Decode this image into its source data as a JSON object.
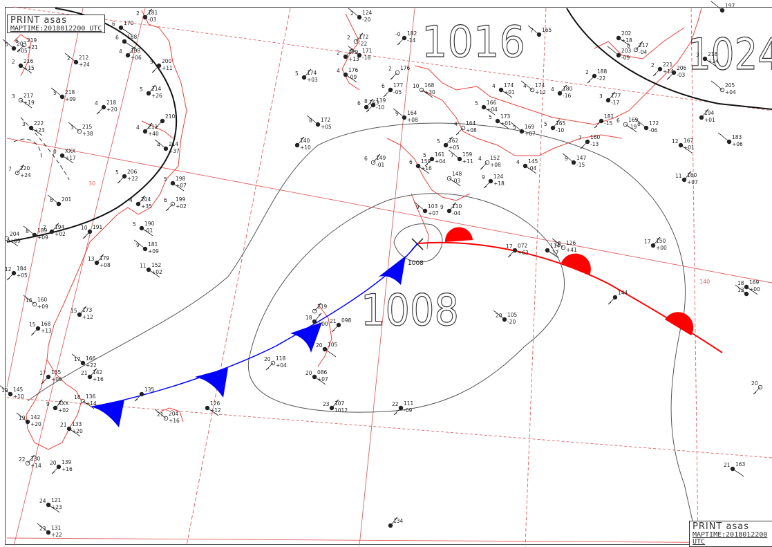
{
  "stamp": {
    "print_label": "PRINT   asas",
    "map_time": "MAPTIME:2018012200 UTC"
  },
  "isobars": [
    {
      "label": "1016"
    },
    {
      "label": "1024"
    },
    {
      "label": "1008"
    }
  ],
  "pressure_center": {
    "label": "1008"
  },
  "colors": {
    "warm_front": "#ff0000",
    "cold_front": "#0000ff",
    "coastline": "#e8403a",
    "grid": "#e06060",
    "isobar": "#555555",
    "station": "#222222"
  },
  "stations": [
    {
      "t": "5",
      "p": "207",
      "c": "+05"
    },
    {
      "t": "2",
      "p": "181",
      "c": "-03"
    },
    {
      "t": "6",
      "p": "219",
      "c": "+21"
    },
    {
      "t": "2",
      "p": "216",
      "c": "+15"
    },
    {
      "t": "2",
      "p": "212",
      "c": "+24"
    },
    {
      "t": "4",
      "p": "198",
      "c": "+06"
    },
    {
      "t": "5",
      "p": "200",
      "c": "+11"
    },
    {
      "t": "3",
      "p": "217",
      "c": "+19"
    },
    {
      "t": "5",
      "p": "218",
      "c": "+09"
    },
    {
      "t": "5",
      "p": "214",
      "c": "+26"
    },
    {
      "t": "4",
      "p": "218",
      "c": "+20"
    },
    {
      "t": "3",
      "p": "222",
      "c": "+23"
    },
    {
      "t": "3",
      "p": "215",
      "c": "+38"
    },
    {
      "t": "4",
      "p": "211",
      "c": "+40"
    },
    {
      "t": "",
      "p": "210",
      "c": ""
    },
    {
      "t": "0",
      "p": "XXX",
      "c": "+17"
    },
    {
      "t": "4",
      "p": "214",
      "c": "+37"
    },
    {
      "t": "7",
      "p": "220",
      "c": "+24"
    },
    {
      "t": "5",
      "p": "206",
      "c": "+22"
    },
    {
      "t": "5",
      "p": "198",
      "c": "+07"
    },
    {
      "t": "8",
      "p": "201",
      "c": ""
    },
    {
      "t": "4",
      "p": "204",
      "c": "+35"
    },
    {
      "t": "6",
      "p": "199",
      "c": "+02"
    },
    {
      "t": "5",
      "p": "190",
      "c": "-01"
    },
    {
      "t": "8",
      "p": "189",
      "c": "+09"
    },
    {
      "t": "7",
      "p": "194",
      "c": "+02"
    },
    {
      "t": "10",
      "p": "191",
      "c": ""
    },
    {
      "t": "",
      "p": "204",
      "c": "+09"
    },
    {
      "t": "9",
      "p": "181",
      "c": "+09"
    },
    {
      "t": "13",
      "p": "179",
      "c": "+08"
    },
    {
      "t": "12",
      "p": "184",
      "c": "+05"
    },
    {
      "t": "11",
      "p": "152",
      "c": "+02"
    },
    {
      "t": "16",
      "p": "160",
      "c": "+09"
    },
    {
      "t": "15",
      "p": "173",
      "c": "+12"
    },
    {
      "t": "15",
      "p": "168",
      "c": "+13"
    },
    {
      "t": "6",
      "p": "170",
      "c": ""
    },
    {
      "t": "2",
      "p": "124",
      "c": "-20"
    },
    {
      "t": "2",
      "p": "172",
      "c": "-22"
    },
    {
      "t": "-0",
      "p": "182",
      "c": "-14"
    },
    {
      "t": "6",
      "p": "188",
      "c": ""
    },
    {
      "t": "3",
      "p": "171",
      "c": "-18"
    },
    {
      "t": "2",
      "p": "179",
      "c": "+13"
    },
    {
      "t": "2",
      "p": "176",
      "c": ""
    },
    {
      "t": "4",
      "p": "176",
      "c": "-09"
    },
    {
      "t": "7",
      "p": "165",
      "c": ""
    },
    {
      "t": "5",
      "p": "174",
      "c": "+03"
    },
    {
      "t": "6",
      "p": "177",
      "c": "-05"
    },
    {
      "t": "10",
      "p": "168",
      "c": "+30"
    },
    {
      "t": "8",
      "p": "172",
      "c": "+05"
    },
    {
      "t": "6",
      "p": "163",
      "c": ""
    },
    {
      "t": "8",
      "p": "139",
      "c": "-10"
    },
    {
      "t": "4",
      "p": "174",
      "c": "+01"
    },
    {
      "t": "4",
      "p": "174",
      "c": "+12"
    },
    {
      "t": "4",
      "p": "180",
      "c": "-16"
    },
    {
      "t": "2",
      "p": "188",
      "c": "-22"
    },
    {
      "t": "",
      "p": "202",
      "c": "+18"
    },
    {
      "t": "",
      "p": "203",
      "c": "-09"
    },
    {
      "t": "0",
      "p": "217",
      "c": "-04"
    },
    {
      "t": "2",
      "p": "221",
      "c": "+14"
    },
    {
      "t": "5",
      "p": "166",
      "c": "+04"
    },
    {
      "t": "9",
      "p": "164",
      "c": "+08"
    },
    {
      "t": "",
      "p": "140",
      "c": "+10"
    },
    {
      "t": "4",
      "p": "164",
      "c": "+08"
    },
    {
      "t": "5",
      "p": "173",
      "c": "+01"
    },
    {
      "t": "5",
      "p": "169",
      "c": "+07"
    },
    {
      "t": "5",
      "p": "165",
      "c": "-10"
    },
    {
      "t": "",
      "p": "181",
      "c": "-15"
    },
    {
      "t": "6",
      "p": "169",
      "c": "-19"
    },
    {
      "t": "8",
      "p": "172",
      "c": "-06"
    },
    {
      "t": "3",
      "p": "177",
      "c": "-17"
    },
    {
      "t": "",
      "p": "206",
      "c": "-03"
    },
    {
      "t": "3",
      "p": "218",
      "c": "+14"
    },
    {
      "t": "",
      "p": "205",
      "c": "+04"
    },
    {
      "t": "",
      "p": "194",
      "c": "+01"
    },
    {
      "t": "7",
      "p": "160",
      "c": "-13"
    },
    {
      "t": "12",
      "p": "167",
      "c": "+01"
    },
    {
      "t": "",
      "p": "183",
      "c": "+06"
    },
    {
      "t": "6",
      "p": "149",
      "c": "-01"
    },
    {
      "t": "5",
      "p": "161",
      "c": "+04"
    },
    {
      "t": "6",
      "p": "159",
      "c": "+16"
    },
    {
      "t": "7",
      "p": "159",
      "c": "+11"
    },
    {
      "t": "5",
      "p": "162",
      "c": "+05"
    },
    {
      "t": "4",
      "p": "152",
      "c": "+08"
    },
    {
      "t": "4",
      "p": "145",
      "c": "-04"
    },
    {
      "t": "9",
      "p": "147",
      "c": "-15"
    },
    {
      "t": "11",
      "p": "160",
      "c": "+07"
    },
    {
      "t": "9",
      "p": "124",
      "c": "+18"
    },
    {
      "t": "",
      "p": "148",
      "c": "-03"
    },
    {
      "t": "9",
      "p": "103",
      "c": "+07"
    },
    {
      "t": "9",
      "p": "110",
      "c": "-04"
    },
    {
      "t": "17",
      "p": "072",
      "c": "+63"
    },
    {
      "t": "",
      "p": "114",
      "c": "-17"
    },
    {
      "t": "18",
      "p": "126",
      "c": "+41"
    },
    {
      "t": "17",
      "p": "150",
      "c": "+00"
    },
    {
      "t": "",
      "p": "144",
      "c": ""
    },
    {
      "t": "18",
      "p": "169",
      "c": "+00"
    },
    {
      "t": "13",
      "p": "",
      "c": ""
    },
    {
      "t": "",
      "p": "119",
      "c": ""
    },
    {
      "t": "21",
      "p": "098",
      "c": ""
    },
    {
      "t": "20",
      "p": "105",
      "c": ""
    },
    {
      "t": "20",
      "p": "105",
      "c": "-20"
    },
    {
      "t": "18",
      "p": "",
      "c": "+00"
    },
    {
      "t": "20",
      "p": "118",
      "c": "+04"
    },
    {
      "t": "20",
      "p": "086",
      "c": "+07"
    },
    {
      "t": "17",
      "p": "166",
      "c": "+22"
    },
    {
      "t": "21",
      "p": "142",
      "c": "+16"
    },
    {
      "t": "17",
      "p": "155",
      "c": "+06"
    },
    {
      "t": "18",
      "p": "136",
      "c": "+14"
    },
    {
      "t": "19",
      "p": "145",
      "c": "+10"
    },
    {
      "t": "9",
      "p": "XXX",
      "c": "+02"
    },
    {
      "t": "",
      "p": "135",
      "c": ""
    },
    {
      "t": "",
      "p": "126",
      "c": "+12"
    },
    {
      "t": "21",
      "p": "204",
      "c": "+16"
    },
    {
      "t": "23",
      "p": "107",
      "c": "1012"
    },
    {
      "t": "22",
      "p": "111",
      "c": "-09"
    },
    {
      "t": "21",
      "p": "133",
      "c": "+20"
    },
    {
      "t": "19",
      "p": "142",
      "c": "+20"
    },
    {
      "t": "22",
      "p": "130",
      "c": "+14"
    },
    {
      "t": "20",
      "p": "139",
      "c": "+16"
    },
    {
      "t": "24",
      "p": "121",
      "c": "+23"
    },
    {
      "t": "23",
      "p": "131",
      "c": "+22"
    },
    {
      "t": "",
      "p": "134",
      "c": ""
    },
    {
      "t": "20",
      "p": "",
      "c": ""
    },
    {
      "t": "21",
      "p": "163",
      "c": ""
    },
    {
      "t": "",
      "p": "197",
      "c": ""
    }
  ],
  "grid_labels": [
    "30",
    "140"
  ]
}
